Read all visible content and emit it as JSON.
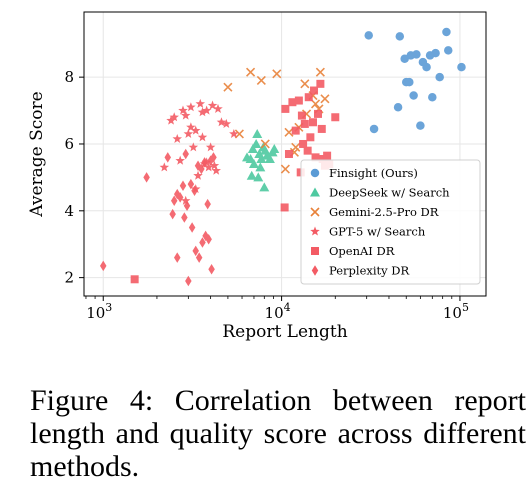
{
  "chart_data": {
    "type": "scatter",
    "xlabel": "Report Length",
    "ylabel": "Average Score",
    "xscale": "log",
    "xlim": [
      780,
      140000
    ],
    "ylim": [
      1.45,
      9.95
    ],
    "xticks": [
      {
        "value": 1000,
        "base": "10",
        "exp": "3"
      },
      {
        "value": 10000,
        "base": "10",
        "exp": "4"
      },
      {
        "value": 100000,
        "base": "10",
        "exp": "5"
      }
    ],
    "yticks": [
      2,
      4,
      6,
      8
    ],
    "grid": true,
    "legend_position": "lower-right",
    "series": [
      {
        "name": "Finsight (Ours)",
        "marker": "circle",
        "color": "#5b9bd5",
        "x": [
          30800,
          46000,
          53000,
          57000,
          68000,
          73000,
          84000,
          33000,
          50000,
          52000,
          55000,
          60000,
          65000,
          86000,
          102000,
          49000,
          70000,
          77000,
          62000,
          45000
        ],
        "y": [
          9.25,
          9.22,
          8.65,
          8.68,
          8.65,
          8.72,
          9.35,
          6.45,
          7.85,
          7.85,
          7.45,
          6.55,
          8.3,
          8.8,
          8.3,
          8.55,
          7.4,
          8.0,
          8.45,
          7.1
        ]
      },
      {
        "name": "DeepSeek w/ Search",
        "marker": "triangle",
        "color": "#4ec9a0",
        "x": [
          6400,
          6700,
          6900,
          7000,
          7300,
          7500,
          7700,
          7900,
          8100,
          8300,
          8600,
          8900,
          7400,
          8000,
          6800,
          7600,
          7200,
          9100
        ],
        "y": [
          5.6,
          5.55,
          5.85,
          5.4,
          6.3,
          5.7,
          5.55,
          5.9,
          5.8,
          5.65,
          5.55,
          5.75,
          5.0,
          4.7,
          5.05,
          5.3,
          6.0,
          5.85
        ],
        "marker_svg_extra": ""
      },
      {
        "name": "Gemini-2.5-Pro DR",
        "marker": "x",
        "color": "#e8823a",
        "x": [
          5000,
          6700,
          7700,
          9400,
          13500,
          15000,
          16500,
          11000,
          12500,
          15500,
          17500,
          12000,
          10500,
          8100,
          5800,
          11800,
          13800,
          16200
        ],
        "y": [
          7.7,
          8.15,
          7.9,
          8.1,
          7.8,
          7.45,
          8.15,
          6.35,
          6.5,
          7.2,
          7.35,
          5.9,
          5.25,
          6.0,
          6.3,
          5.75,
          6.9,
          7.05
        ]
      },
      {
        "name": "GPT-5 w/ Search",
        "marker": "star",
        "color": "#f35b64",
        "x": [
          2800,
          3100,
          3500,
          3800,
          4400,
          4900,
          2400,
          2900,
          3300,
          3600,
          4000,
          2200,
          2700,
          3200,
          3700,
          4200,
          2600,
          3000,
          3400,
          3900,
          4600,
          5400,
          2500,
          3100,
          3600,
          4100,
          3300,
          2900,
          3800,
          4300
        ],
        "y": [
          7.0,
          7.1,
          7.2,
          7.0,
          7.05,
          6.6,
          6.7,
          6.85,
          6.4,
          6.2,
          5.9,
          5.3,
          5.5,
          5.9,
          5.4,
          5.35,
          6.15,
          6.3,
          5.05,
          5.3,
          6.65,
          6.3,
          6.8,
          6.5,
          6.95,
          7.15,
          4.65,
          4.3,
          5.45,
          5.2
        ]
      },
      {
        "name": "OpenAI DR",
        "marker": "square",
        "color": "#f35b64",
        "x": [
          10500,
          11500,
          12500,
          13000,
          13500,
          14500,
          15000,
          16000,
          17000,
          18000,
          20000,
          15500,
          14000,
          12000,
          16500,
          18500,
          11000,
          13200,
          17500,
          10400,
          1500,
          15200,
          14200,
          12800,
          16800
        ],
        "y": [
          7.05,
          7.25,
          7.3,
          6.85,
          6.6,
          6.2,
          6.65,
          6.9,
          5.55,
          5.65,
          6.8,
          5.6,
          5.8,
          6.4,
          7.8,
          5.4,
          5.7,
          6.0,
          5.35,
          4.1,
          1.95,
          7.6,
          7.4,
          5.15,
          6.45
        ]
      },
      {
        "name": "Perplexity DR",
        "marker": "diamond",
        "color": "#f35b64",
        "x": [
          1000,
          1750,
          2300,
          2600,
          2900,
          3100,
          3400,
          3700,
          4000,
          2450,
          2700,
          2950,
          3250,
          3550,
          3850,
          4150,
          2500,
          2850,
          3150,
          3450,
          3750,
          4050,
          3300,
          3600,
          2600,
          3000,
          3900,
          2800
        ],
        "y": [
          2.35,
          5.0,
          5.6,
          4.5,
          5.7,
          4.8,
          5.35,
          5.45,
          5.5,
          3.9,
          4.4,
          4.15,
          4.6,
          5.25,
          4.2,
          5.6,
          4.3,
          3.8,
          3.5,
          2.6,
          3.25,
          2.25,
          2.8,
          3.05,
          2.6,
          1.9,
          3.15,
          4.75
        ]
      }
    ]
  },
  "caption": {
    "text": "Figure 4:  Correlation between report length and quality score across different methods."
  }
}
